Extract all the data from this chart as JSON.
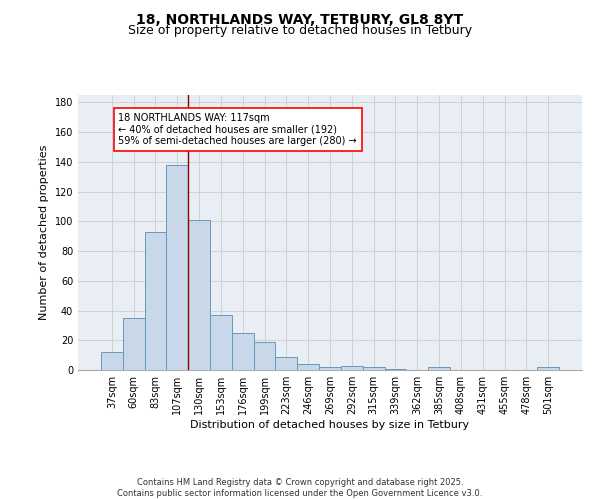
{
  "title_line1": "18, NORTHLANDS WAY, TETBURY, GL8 8YT",
  "title_line2": "Size of property relative to detached houses in Tetbury",
  "xlabel": "Distribution of detached houses by size in Tetbury",
  "ylabel": "Number of detached properties",
  "bar_labels": [
    "37sqm",
    "60sqm",
    "83sqm",
    "107sqm",
    "130sqm",
    "153sqm",
    "176sqm",
    "199sqm",
    "223sqm",
    "246sqm",
    "269sqm",
    "292sqm",
    "315sqm",
    "339sqm",
    "362sqm",
    "385sqm",
    "408sqm",
    "431sqm",
    "455sqm",
    "478sqm",
    "501sqm"
  ],
  "bar_values": [
    12,
    35,
    93,
    138,
    101,
    37,
    25,
    19,
    9,
    4,
    2,
    3,
    2,
    1,
    0,
    2,
    0,
    0,
    0,
    0,
    2
  ],
  "bar_color": "#c8d8e8",
  "bar_edgecolor": "#6699bb",
  "vline_color": "#8b0000",
  "vline_x": 3.5,
  "annotation_text": "18 NORTHLANDS WAY: 117sqm\n← 40% of detached houses are smaller (192)\n59% of semi-detached houses are larger (280) →",
  "ylim": [
    0,
    185
  ],
  "yticks": [
    0,
    20,
    40,
    60,
    80,
    100,
    120,
    140,
    160,
    180
  ],
  "grid_color": "#cccccc",
  "background_color": "#e8eef4",
  "footer_text": "Contains HM Land Registry data © Crown copyright and database right 2025.\nContains public sector information licensed under the Open Government Licence v3.0.",
  "title_fontsize": 10,
  "subtitle_fontsize": 9,
  "tick_fontsize": 7,
  "ylabel_fontsize": 8,
  "xlabel_fontsize": 8,
  "footer_fontsize": 6,
  "ann_fontsize": 7
}
